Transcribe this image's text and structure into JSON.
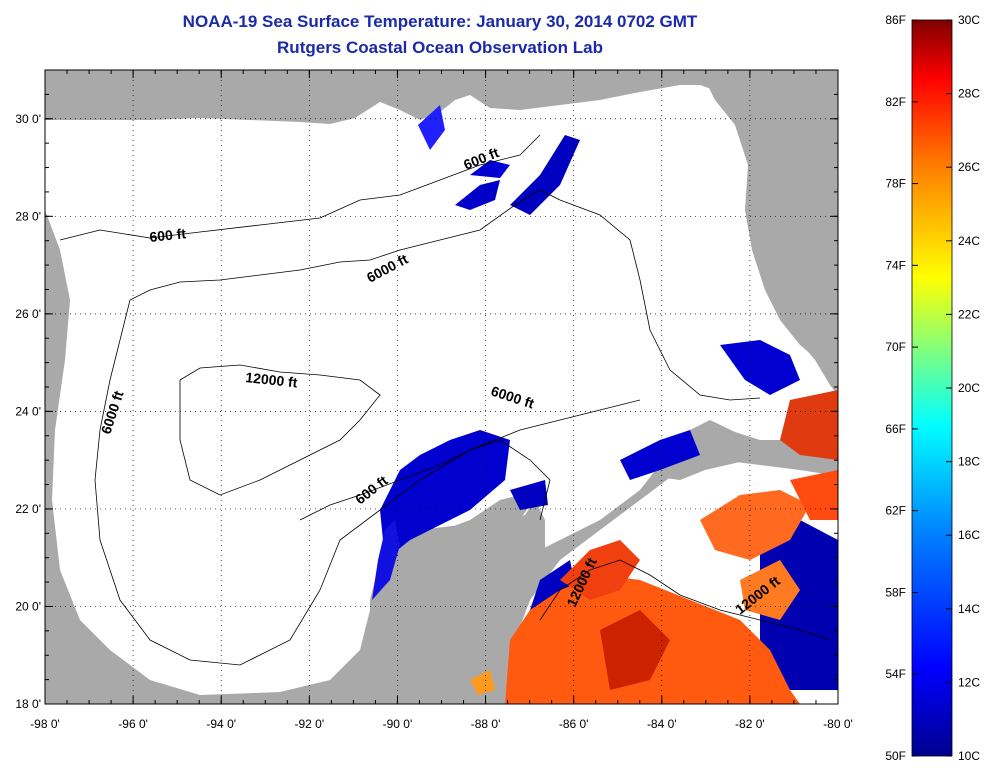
{
  "title": "NOAA-19 Sea Surface Temperature:  January 30, 2014 0702 GMT",
  "subtitle": "Rutgers Coastal Ocean Observation Lab",
  "map": {
    "lon_range": [
      -98,
      -80
    ],
    "lat_range": [
      18,
      31
    ],
    "grid": true,
    "x_ticks": [
      "-98 0'",
      "-96 0'",
      "-94 0'",
      "-92 0'",
      "-90 0'",
      "-88 0'",
      "-86 0'",
      "-84 0'",
      "-82 0'",
      "-80 0'"
    ],
    "y_ticks": [
      "30 0'",
      "28 0'",
      "26 0'",
      "24 0'",
      "22 0'",
      "20 0'",
      "18 0'"
    ],
    "land_color": "#a9a9a9",
    "nodata_color": "#ffffff"
  },
  "contours": [
    {
      "label": "600 ft"
    },
    {
      "label": "600 ft"
    },
    {
      "label": "600 ft"
    },
    {
      "label": "6000 ft"
    },
    {
      "label": "6000 ft"
    },
    {
      "label": "6000 ft"
    },
    {
      "label": "12000 ft"
    },
    {
      "label": "12000 ft"
    },
    {
      "label": "12000 ft"
    }
  ],
  "colorbar": {
    "min_c": 10,
    "max_c": 30,
    "min_f": 50,
    "max_f": 86,
    "f_labels": [
      "86F",
      "82F",
      "78F",
      "74F",
      "70F",
      "66F",
      "62F",
      "58F",
      "54F",
      "50F"
    ],
    "c_labels": [
      "30C",
      "28C",
      "26C",
      "24C",
      "22C",
      "20C",
      "18C",
      "16C",
      "14C",
      "12C",
      "10C"
    ],
    "colors": [
      "#00008f",
      "#0000ff",
      "#007fff",
      "#00ffff",
      "#7fff7f",
      "#ffff00",
      "#ff7f00",
      "#ff0000",
      "#7f0000"
    ]
  }
}
